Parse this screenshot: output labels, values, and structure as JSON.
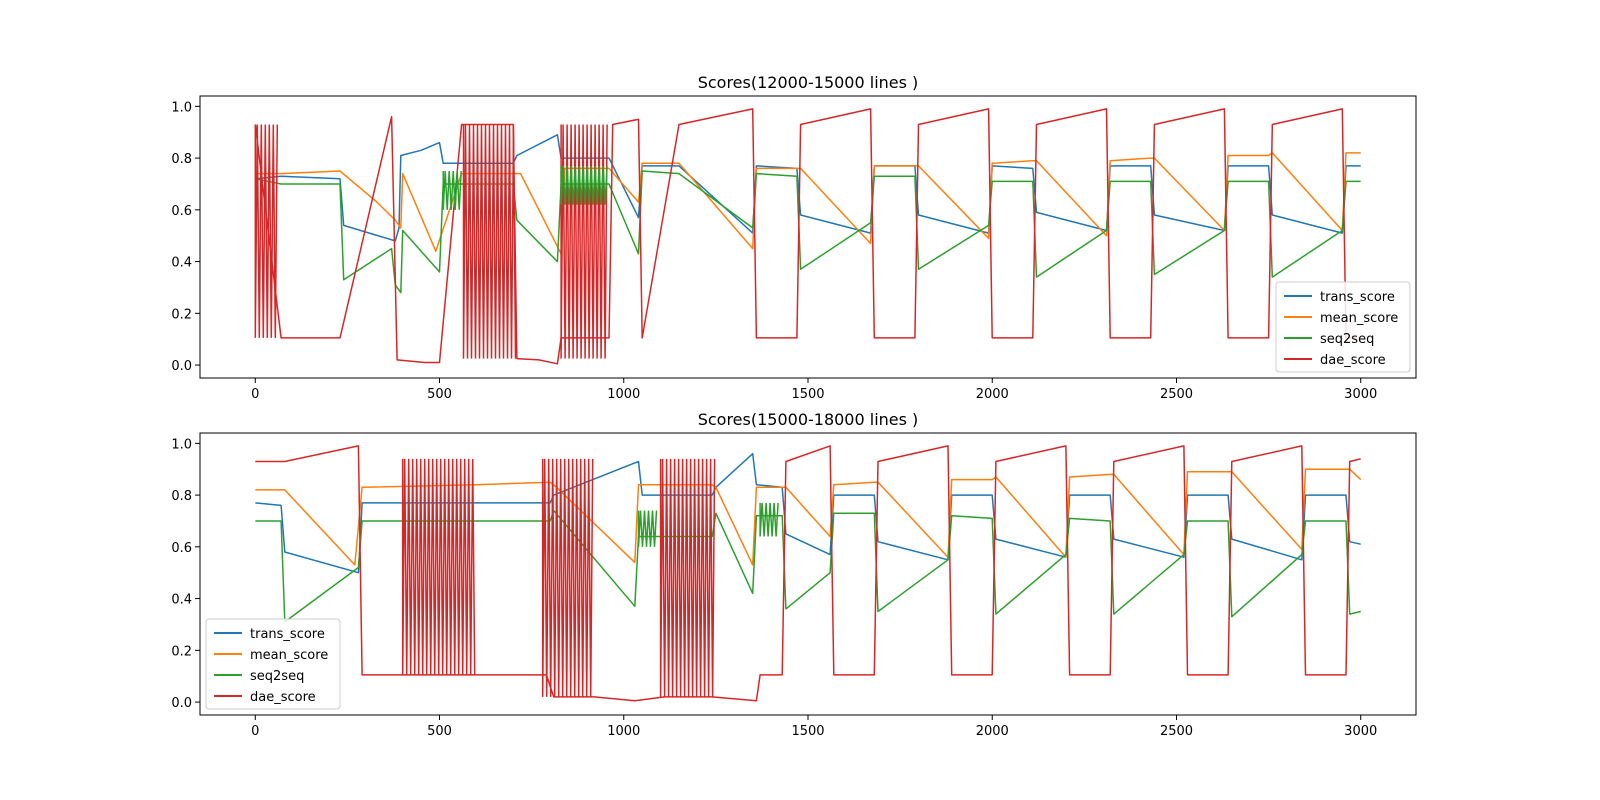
{
  "chart_data": [
    {
      "type": "line",
      "title": "Scores(12000-15000 lines )",
      "xlabel": "",
      "ylabel": "",
      "xlim": [
        -150,
        3150
      ],
      "ylim": [
        -0.05,
        1.04
      ],
      "xticks": [
        0,
        500,
        1000,
        1500,
        2000,
        2500,
        3000
      ],
      "yticks": [
        0.0,
        0.2,
        0.4,
        0.6,
        0.8,
        1.0
      ],
      "xtick_labels": [
        "0",
        "500",
        "1000",
        "1500",
        "2000",
        "2500",
        "3000"
      ],
      "ytick_labels": [
        "0.0",
        "0.2",
        "0.4",
        "0.6",
        "0.8",
        "1.0"
      ],
      "grid": false,
      "legend_position": "lower right",
      "series": [
        {
          "name": "trans_score",
          "color": "#1f77b4",
          "x": [
            0,
            70,
            230,
            240,
            380,
            390,
            395,
            450,
            500,
            510,
            560,
            700,
            710,
            820,
            830,
            960,
            1040,
            1050,
            1150,
            1350,
            1360,
            1470,
            1480,
            1670,
            1680,
            1790,
            1800,
            1990,
            2000,
            2110,
            2120,
            2310,
            2320,
            2430,
            2440,
            2630,
            2640,
            2750,
            2760,
            2950,
            2960,
            3000
          ],
          "y": [
            0.72,
            0.73,
            0.72,
            0.54,
            0.48,
            0.53,
            0.81,
            0.83,
            0.86,
            0.78,
            0.78,
            0.78,
            0.81,
            0.89,
            0.8,
            0.8,
            0.57,
            0.77,
            0.77,
            0.51,
            0.77,
            0.76,
            0.58,
            0.51,
            0.77,
            0.77,
            0.58,
            0.51,
            0.77,
            0.76,
            0.59,
            0.52,
            0.77,
            0.77,
            0.58,
            0.52,
            0.77,
            0.77,
            0.58,
            0.51,
            0.77,
            0.77
          ]
        },
        {
          "name": "mean_score",
          "color": "#ff7f0e",
          "x": [
            0,
            70,
            230,
            330,
            380,
            395,
            400,
            490,
            560,
            700,
            720,
            830,
            840,
            960,
            1040,
            1050,
            1150,
            1350,
            1360,
            1470,
            1480,
            1670,
            1680,
            1790,
            1800,
            1990,
            2000,
            2110,
            2120,
            2310,
            2320,
            2430,
            2440,
            2630,
            2640,
            2750,
            2760,
            2950,
            2960,
            3000
          ],
          "y": [
            0.74,
            0.74,
            0.75,
            0.63,
            0.56,
            0.53,
            0.74,
            0.44,
            0.74,
            0.74,
            0.74,
            0.43,
            0.76,
            0.76,
            0.63,
            0.78,
            0.78,
            0.45,
            0.76,
            0.76,
            0.76,
            0.47,
            0.77,
            0.77,
            0.77,
            0.49,
            0.78,
            0.79,
            0.79,
            0.5,
            0.79,
            0.8,
            0.8,
            0.52,
            0.81,
            0.81,
            0.82,
            0.52,
            0.82,
            0.82
          ]
        },
        {
          "name": "seq2seq",
          "color": "#2ca02c",
          "x": [
            0,
            70,
            230,
            240,
            370,
            380,
            395,
            400,
            500,
            510,
            560,
            700,
            710,
            820,
            830,
            960,
            1040,
            1050,
            1150,
            1350,
            1360,
            1470,
            1480,
            1670,
            1680,
            1790,
            1800,
            1990,
            2000,
            2110,
            2120,
            2310,
            2320,
            2430,
            2440,
            2630,
            2640,
            2750,
            2760,
            2950,
            2960,
            3000
          ],
          "y": [
            0.72,
            0.7,
            0.7,
            0.33,
            0.45,
            0.31,
            0.28,
            0.52,
            0.36,
            0.7,
            0.7,
            0.7,
            0.56,
            0.4,
            0.7,
            0.7,
            0.43,
            0.75,
            0.74,
            0.53,
            0.74,
            0.73,
            0.37,
            0.55,
            0.73,
            0.73,
            0.37,
            0.54,
            0.71,
            0.71,
            0.34,
            0.52,
            0.71,
            0.71,
            0.35,
            0.52,
            0.71,
            0.71,
            0.34,
            0.52,
            0.71,
            0.71
          ]
        },
        {
          "name": "dae_score",
          "color": "#d62728",
          "x": [
            0,
            70,
            230,
            370,
            385,
            460,
            500,
            560,
            700,
            710,
            770,
            820,
            830,
            960,
            970,
            1040,
            1050,
            1150,
            1350,
            1360,
            1470,
            1480,
            1670,
            1680,
            1790,
            1800,
            1990,
            2000,
            2110,
            2120,
            2310,
            2320,
            2430,
            2440,
            2630,
            2640,
            2750,
            2760,
            2950,
            2960,
            3000
          ],
          "y": [
            0.93,
            0.105,
            0.105,
            0.96,
            0.02,
            0.01,
            0.01,
            0.93,
            0.93,
            0.025,
            0.02,
            0.005,
            0.105,
            0.105,
            0.93,
            0.95,
            0.105,
            0.93,
            0.99,
            0.105,
            0.105,
            0.93,
            0.99,
            0.105,
            0.105,
            0.93,
            0.99,
            0.105,
            0.105,
            0.93,
            0.99,
            0.105,
            0.105,
            0.93,
            0.99,
            0.105,
            0.105,
            0.93,
            0.99,
            0.105,
            0.105
          ]
        }
      ],
      "oscillation_bands": [
        {
          "series": "dae_score",
          "x_range": [
            0,
            65
          ],
          "y_range": [
            0.105,
            0.93
          ]
        },
        {
          "series": "dae_score",
          "x_range": [
            565,
            710
          ],
          "y_range": [
            0.025,
            0.93
          ]
        },
        {
          "series": "dae_score",
          "x_range": [
            830,
            960
          ],
          "y_range": [
            0.025,
            0.93
          ]
        },
        {
          "series": "seq2seq",
          "x_range": [
            510,
            560
          ],
          "y_range": [
            0.6,
            0.75
          ]
        },
        {
          "series": "seq2seq",
          "x_range": [
            830,
            960
          ],
          "y_range": [
            0.62,
            0.77
          ]
        }
      ]
    },
    {
      "type": "line",
      "title": "Scores(15000-18000 lines )",
      "xlabel": "",
      "ylabel": "",
      "xlim": [
        -150,
        3150
      ],
      "ylim": [
        -0.05,
        1.04
      ],
      "xticks": [
        0,
        500,
        1000,
        1500,
        2000,
        2500,
        3000
      ],
      "yticks": [
        0.0,
        0.2,
        0.4,
        0.6,
        0.8,
        1.0
      ],
      "xtick_labels": [
        "0",
        "500",
        "1000",
        "1500",
        "2000",
        "2500",
        "3000"
      ],
      "ytick_labels": [
        "0.0",
        "0.2",
        "0.4",
        "0.6",
        "0.8",
        "1.0"
      ],
      "grid": false,
      "legend_position": "lower left",
      "series": [
        {
          "name": "trans_score",
          "color": "#1f77b4",
          "x": [
            0,
            70,
            80,
            280,
            290,
            400,
            600,
            800,
            810,
            1040,
            1050,
            1100,
            1240,
            1250,
            1350,
            1360,
            1430,
            1440,
            1560,
            1570,
            1680,
            1690,
            1880,
            1890,
            2000,
            2010,
            2200,
            2210,
            2320,
            2330,
            2520,
            2530,
            2640,
            2650,
            2840,
            2850,
            2960,
            2970,
            3000
          ],
          "y": [
            0.77,
            0.76,
            0.58,
            0.5,
            0.77,
            0.77,
            0.77,
            0.77,
            0.8,
            0.93,
            0.8,
            0.8,
            0.8,
            0.83,
            0.96,
            0.84,
            0.83,
            0.65,
            0.57,
            0.8,
            0.8,
            0.62,
            0.55,
            0.8,
            0.8,
            0.63,
            0.56,
            0.8,
            0.8,
            0.63,
            0.56,
            0.8,
            0.8,
            0.63,
            0.55,
            0.8,
            0.8,
            0.62,
            0.61
          ]
        },
        {
          "name": "mean_score",
          "color": "#ff7f0e",
          "x": [
            0,
            70,
            80,
            270,
            290,
            600,
            800,
            810,
            1030,
            1040,
            1240,
            1250,
            1350,
            1360,
            1430,
            1440,
            1560,
            1570,
            1680,
            1690,
            1880,
            1890,
            2000,
            2010,
            2200,
            2210,
            2320,
            2330,
            2520,
            2530,
            2640,
            2650,
            2840,
            2850,
            2960,
            2970,
            3000
          ],
          "y": [
            0.82,
            0.82,
            0.82,
            0.53,
            0.83,
            0.84,
            0.85,
            0.84,
            0.54,
            0.84,
            0.84,
            0.83,
            0.53,
            0.83,
            0.83,
            0.83,
            0.64,
            0.84,
            0.85,
            0.85,
            0.56,
            0.86,
            0.86,
            0.87,
            0.56,
            0.87,
            0.88,
            0.88,
            0.57,
            0.89,
            0.89,
            0.89,
            0.59,
            0.9,
            0.9,
            0.9,
            0.86
          ]
        },
        {
          "name": "seq2seq",
          "color": "#2ca02c",
          "x": [
            0,
            70,
            80,
            280,
            290,
            600,
            800,
            810,
            1030,
            1040,
            1240,
            1250,
            1350,
            1360,
            1430,
            1440,
            1560,
            1570,
            1680,
            1690,
            1880,
            1890,
            2000,
            2010,
            2200,
            2210,
            2320,
            2330,
            2520,
            2530,
            2640,
            2650,
            2840,
            2850,
            2960,
            2970,
            3000
          ],
          "y": [
            0.7,
            0.7,
            0.31,
            0.52,
            0.7,
            0.7,
            0.7,
            0.74,
            0.37,
            0.64,
            0.64,
            0.73,
            0.42,
            0.72,
            0.72,
            0.36,
            0.5,
            0.73,
            0.73,
            0.35,
            0.55,
            0.72,
            0.71,
            0.34,
            0.57,
            0.71,
            0.7,
            0.34,
            0.57,
            0.7,
            0.7,
            0.33,
            0.57,
            0.7,
            0.7,
            0.34,
            0.35
          ]
        },
        {
          "name": "dae_score",
          "color": "#d62728",
          "x": [
            0,
            70,
            80,
            280,
            290,
            400,
            600,
            790,
            810,
            920,
            1030,
            1110,
            1240,
            1360,
            1370,
            1430,
            1440,
            1560,
            1570,
            1680,
            1690,
            1880,
            1890,
            2000,
            2010,
            2200,
            2210,
            2320,
            2330,
            2520,
            2530,
            2640,
            2650,
            2840,
            2850,
            2960,
            2970,
            3000
          ],
          "y": [
            0.93,
            0.93,
            0.93,
            0.99,
            0.105,
            0.105,
            0.105,
            0.105,
            0.02,
            0.02,
            0.005,
            0.02,
            0.02,
            0.005,
            0.105,
            0.105,
            0.93,
            0.99,
            0.105,
            0.105,
            0.93,
            0.99,
            0.105,
            0.105,
            0.93,
            0.99,
            0.105,
            0.105,
            0.93,
            0.99,
            0.105,
            0.105,
            0.93,
            0.99,
            0.105,
            0.105,
            0.93,
            0.94
          ]
        }
      ],
      "oscillation_bands": [
        {
          "series": "dae_score",
          "x_range": [
            400,
            600
          ],
          "y_range": [
            0.105,
            0.94
          ]
        },
        {
          "series": "dae_score",
          "x_range": [
            780,
            920
          ],
          "y_range": [
            0.02,
            0.94
          ]
        },
        {
          "series": "dae_score",
          "x_range": [
            1100,
            1250
          ],
          "y_range": [
            0.02,
            0.94
          ]
        },
        {
          "series": "seq2seq",
          "x_range": [
            1040,
            1090
          ],
          "y_range": [
            0.6,
            0.74
          ]
        },
        {
          "series": "seq2seq",
          "x_range": [
            1370,
            1420
          ],
          "y_range": [
            0.64,
            0.77
          ]
        }
      ]
    }
  ]
}
